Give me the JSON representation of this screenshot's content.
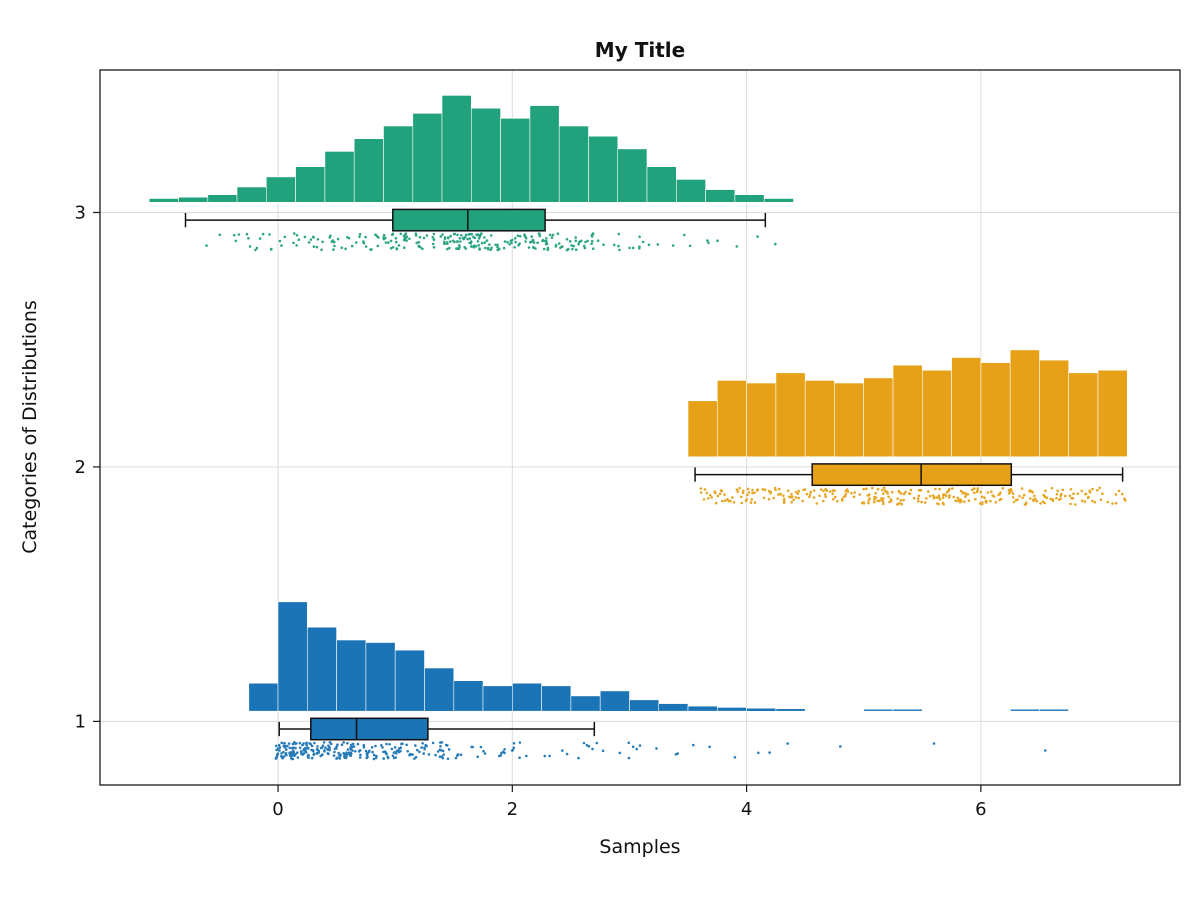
{
  "chart_data": {
    "type": "raincloud",
    "subtype": "histogram + boxplot + jittered strip per category",
    "title": "My Title",
    "xlabel": "Samples",
    "ylabel": "Categories of Distributions",
    "xlim": [
      -1.52,
      7.7
    ],
    "ylim": [
      0.75,
      3.56
    ],
    "xticks": [
      0,
      2,
      4,
      6
    ],
    "yticks": [
      1,
      2,
      3
    ],
    "grid": true,
    "grid_color": "#dcdcdc",
    "axis_color": "#1a1a1a",
    "categories": [
      {
        "label": "1",
        "value": 1,
        "color": "#1b74b5",
        "distribution": "exponential-like, right-skewed",
        "histogram": {
          "bin_start": -0.25,
          "bin_width": 0.25,
          "heights": [
            0.11,
            0.43,
            0.33,
            0.28,
            0.27,
            0.24,
            0.17,
            0.12,
            0.1,
            0.11,
            0.1,
            0.06,
            0.08,
            0.045,
            0.03,
            0.02,
            0.015,
            0.012,
            0.01,
            0,
            0,
            0.008,
            0.008,
            0,
            0,
            0,
            0.008,
            0.008,
            0
          ]
        },
        "box": {
          "whisker_low": 0.01,
          "q1": 0.28,
          "median": 0.67,
          "q3": 1.28,
          "whisker_high": 2.7
        },
        "strip": {
          "n": 300,
          "dist": "exponential",
          "scale": 0.8,
          "min": -0.02,
          "max": 6.6,
          "seed": 7,
          "extra_points": [
            3.9,
            4.35,
            4.8,
            5.6,
            6.55
          ]
        }
      },
      {
        "label": "2",
        "value": 2,
        "color": "#e7a118",
        "distribution": "uniform",
        "histogram": {
          "bin_start": 3.5,
          "bin_width": 0.25,
          "heights": [
            0.22,
            0.3,
            0.29,
            0.33,
            0.3,
            0.29,
            0.31,
            0.36,
            0.34,
            0.39,
            0.37,
            0.42,
            0.38,
            0.33,
            0.34
          ]
        },
        "box": {
          "whisker_low": 3.56,
          "q1": 4.56,
          "median": 5.49,
          "q3": 6.26,
          "whisker_high": 7.21
        },
        "strip": {
          "n": 330,
          "dist": "uniform",
          "min": 3.6,
          "max": 7.26,
          "seed": 21,
          "extra_points": []
        }
      },
      {
        "label": "3",
        "value": 3,
        "color": "#21a17c",
        "distribution": "normal",
        "histogram": {
          "bin_start": -1.1,
          "bin_width": 0.25,
          "heights": [
            0.015,
            0.02,
            0.03,
            0.06,
            0.1,
            0.14,
            0.2,
            0.25,
            0.3,
            0.35,
            0.42,
            0.37,
            0.33,
            0.38,
            0.3,
            0.26,
            0.21,
            0.14,
            0.09,
            0.05,
            0.03,
            0.015
          ]
        },
        "box": {
          "whisker_low": -0.79,
          "q1": 0.98,
          "median": 1.62,
          "q3": 2.28,
          "whisker_high": 4.16
        },
        "strip": {
          "n": 290,
          "dist": "normal",
          "mean": 1.6,
          "sd": 0.95,
          "min": -1.0,
          "max": 4.25,
          "seed": 33,
          "extra_points": []
        }
      }
    ],
    "layout": {
      "plot_left": 100,
      "plot_right": 1180,
      "plot_top": 70,
      "plot_bottom": 785,
      "hist_baseline_offset": 0.04,
      "box_center_offset": -0.03,
      "box_half_height": 0.042,
      "cap_half_height": 0.028,
      "strip_center_offset": -0.115,
      "strip_jitter": 0.033,
      "point_radius": 1.3
    }
  }
}
